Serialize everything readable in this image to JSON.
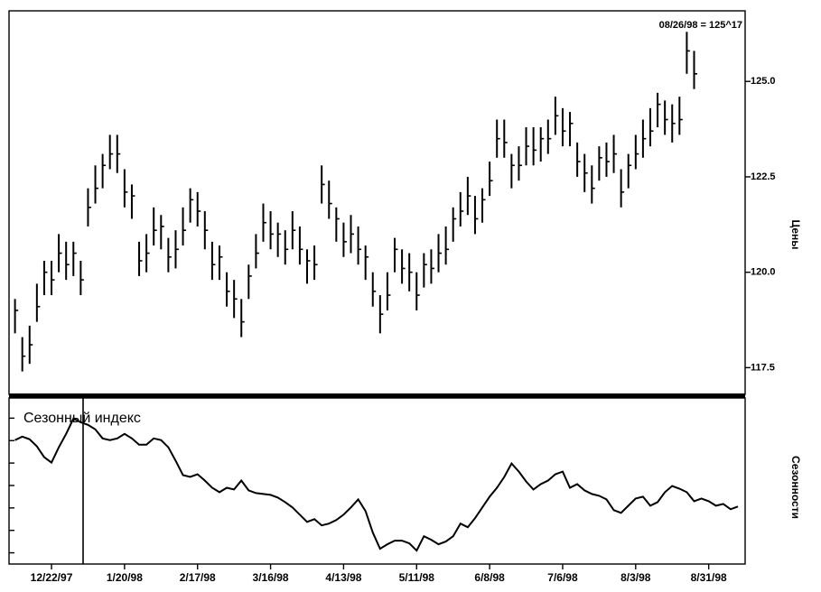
{
  "chart_data": [
    {
      "type": "ohlc",
      "annotation": "08/26/98 = 125^17",
      "y_label": "Цены",
      "ylim": [
        116.8,
        126.85
      ],
      "yticks": [
        117.5,
        {
          "value": 120,
          "label": "120.0"
        },
        122.5,
        {
          "value": 125,
          "label": "125.0"
        }
      ],
      "color": "#000000",
      "high": [
        119.3,
        118.3,
        118.6,
        119.7,
        120.3,
        120.3,
        121.0,
        120.8,
        120.8,
        120.3,
        122.2,
        122.8,
        123.1,
        123.6,
        123.6,
        122.7,
        122.3,
        120.8,
        121.0,
        121.7,
        121.5,
        120.9,
        121.1,
        121.7,
        122.2,
        122.1,
        121.6,
        120.8,
        120.7,
        120.0,
        119.8,
        119.3,
        120.2,
        121.0,
        121.8,
        121.6,
        121.3,
        121.1,
        121.6,
        121.2,
        120.6,
        120.7,
        122.8,
        122.4,
        121.7,
        121.3,
        121.5,
        121.2,
        120.7,
        120.0,
        119.4,
        120.0,
        120.9,
        120.6,
        120.5,
        120.0,
        120.5,
        120.6,
        121.0,
        121.2,
        121.7,
        122.1,
        122.5,
        122.0,
        122.2,
        122.9,
        124.0,
        124.0,
        123.1,
        123.3,
        123.8,
        123.8,
        123.8,
        124.0,
        124.6,
        124.3,
        124.2,
        123.4,
        123.1,
        122.8,
        123.3,
        123.4,
        123.6,
        122.7,
        123.1,
        123.6,
        124.0,
        124.3,
        124.7,
        124.5,
        124.4,
        124.6,
        126.3,
        125.8
      ],
      "low": [
        118.4,
        117.4,
        117.6,
        118.7,
        119.4,
        119.4,
        120.0,
        119.8,
        119.9,
        119.4,
        121.2,
        121.8,
        122.2,
        122.7,
        122.6,
        121.7,
        121.4,
        119.9,
        120.0,
        120.7,
        120.6,
        120.0,
        120.1,
        120.7,
        121.3,
        121.2,
        120.6,
        119.8,
        119.8,
        119.1,
        118.8,
        118.3,
        119.3,
        120.1,
        120.8,
        120.6,
        120.4,
        120.2,
        120.6,
        120.2,
        119.7,
        119.8,
        121.8,
        121.4,
        120.8,
        120.4,
        120.5,
        120.2,
        119.8,
        119.1,
        118.4,
        119.0,
        120.0,
        119.7,
        119.5,
        119.0,
        119.6,
        119.7,
        120.0,
        120.2,
        120.8,
        121.2,
        121.5,
        121.0,
        121.3,
        122.0,
        123.0,
        123.0,
        122.2,
        122.4,
        122.8,
        122.8,
        122.9,
        123.1,
        123.6,
        123.3,
        123.3,
        122.5,
        122.1,
        121.8,
        122.4,
        122.5,
        122.6,
        121.7,
        122.2,
        122.7,
        123.0,
        123.3,
        123.8,
        123.6,
        123.4,
        123.6,
        125.2,
        124.8
      ],
      "close": [
        119.0,
        117.8,
        118.1,
        119.1,
        120.0,
        119.8,
        120.5,
        120.2,
        120.5,
        119.8,
        121.7,
        122.2,
        122.8,
        123.1,
        123.1,
        122.1,
        122.0,
        120.3,
        120.5,
        121.1,
        121.2,
        120.4,
        120.6,
        121.1,
        121.9,
        121.6,
        121.1,
        120.2,
        120.4,
        119.5,
        119.3,
        118.7,
        119.9,
        120.5,
        121.3,
        121.0,
        121.0,
        120.6,
        121.1,
        120.6,
        120.3,
        120.2,
        122.3,
        121.8,
        121.4,
        120.8,
        121.0,
        120.6,
        120.4,
        119.5,
        118.9,
        119.4,
        120.6,
        120.1,
        120.0,
        119.4,
        120.2,
        120.1,
        120.5,
        120.6,
        121.4,
        121.6,
        122.0,
        121.4,
        121.9,
        122.4,
        123.5,
        123.4,
        122.8,
        122.8,
        123.3,
        123.2,
        123.5,
        123.5,
        124.1,
        123.7,
        123.9,
        122.9,
        122.6,
        122.2,
        123.0,
        122.9,
        123.1,
        122.1,
        122.8,
        123.1,
        123.5,
        123.7,
        124.4,
        124.0,
        123.9,
        124.0,
        125.8,
        125.2
      ]
    },
    {
      "type": "line",
      "title": "Сезонный индекс",
      "y_label": "Сезонности",
      "color": "#000000",
      "ylim": [
        0.5,
        7.9
      ],
      "yticks": [
        1,
        2,
        3,
        4,
        5,
        6,
        7
      ],
      "categories": [
        null,
        null,
        null,
        null,
        null,
        "12/22/97",
        null,
        null,
        null,
        null,
        null,
        null,
        null,
        null,
        null,
        "1/20/98",
        null,
        null,
        null,
        null,
        null,
        null,
        null,
        null,
        null,
        "2/17/98",
        null,
        null,
        null,
        null,
        null,
        null,
        null,
        null,
        null,
        "3/16/98",
        null,
        null,
        null,
        null,
        null,
        null,
        null,
        null,
        null,
        "4/13/98",
        null,
        null,
        null,
        null,
        null,
        null,
        null,
        null,
        null,
        "5/11/98",
        null,
        null,
        null,
        null,
        null,
        null,
        null,
        null,
        null,
        "6/8/98",
        null,
        null,
        null,
        null,
        null,
        null,
        null,
        null,
        null,
        "7/6/98",
        null,
        null,
        null,
        null,
        null,
        null,
        null,
        null,
        null,
        "8/3/98",
        null,
        null,
        null,
        null,
        null,
        null,
        null,
        null,
        null,
        "8/31/98",
        null,
        null,
        null,
        null
      ],
      "values": [
        6.02,
        6.18,
        6.06,
        5.74,
        5.26,
        5.02,
        5.7,
        6.3,
        6.98,
        6.82,
        6.7,
        6.5,
        6.1,
        6.02,
        6.1,
        6.3,
        6.1,
        5.82,
        5.82,
        6.1,
        6.02,
        5.7,
        5.1,
        4.46,
        4.38,
        4.5,
        4.22,
        3.9,
        3.7,
        3.9,
        3.82,
        4.22,
        3.78,
        3.66,
        3.62,
        3.58,
        3.46,
        3.26,
        3.02,
        2.7,
        2.38,
        2.5,
        2.22,
        2.3,
        2.46,
        2.7,
        3.02,
        3.38,
        2.86,
        1.9,
        1.18,
        1.38,
        1.54,
        1.54,
        1.42,
        1.1,
        1.74,
        1.58,
        1.38,
        1.5,
        1.74,
        2.3,
        2.14,
        2.54,
        3.02,
        3.5,
        3.9,
        4.38,
        4.98,
        4.62,
        4.18,
        3.82,
        4.06,
        4.22,
        4.5,
        4.62,
        3.9,
        4.06,
        3.78,
        3.62,
        3.54,
        3.38,
        2.9,
        2.78,
        3.1,
        3.42,
        3.5,
        3.1,
        3.26,
        3.7,
        3.98,
        3.86,
        3.7,
        3.3,
        3.42,
        3.3,
        3.1,
        3.18,
        2.94,
        3.06
      ]
    }
  ]
}
